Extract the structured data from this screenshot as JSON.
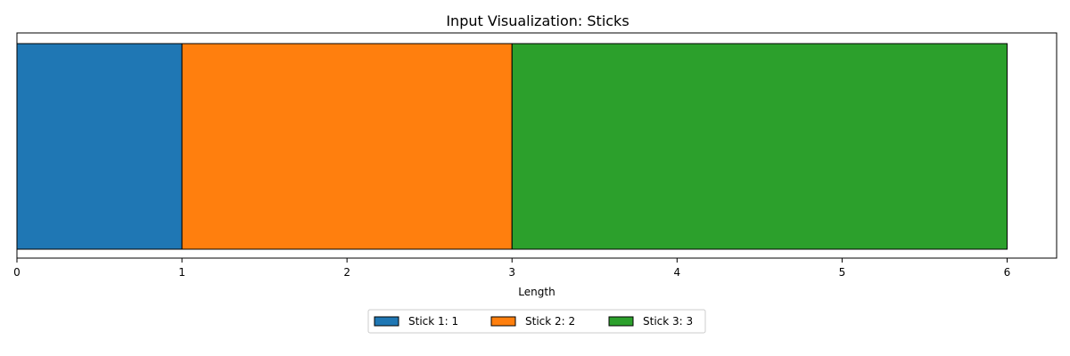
{
  "chart_data": {
    "type": "bar",
    "orientation": "horizontal-stacked",
    "title": "Input Visualization: Sticks",
    "xlabel": "Length",
    "ylabel": "",
    "xlim": [
      0,
      6.3
    ],
    "xticks": [
      0,
      1,
      2,
      3,
      4,
      5,
      6
    ],
    "grid": false,
    "legend_position": "bottom-center",
    "series": [
      {
        "name": "Stick 1: 1",
        "value": 1,
        "color": "#1f77b4"
      },
      {
        "name": "Stick 2: 2",
        "value": 2,
        "color": "#ff7f0e"
      },
      {
        "name": "Stick 3: 3",
        "value": 3,
        "color": "#2ca02c"
      }
    ]
  }
}
